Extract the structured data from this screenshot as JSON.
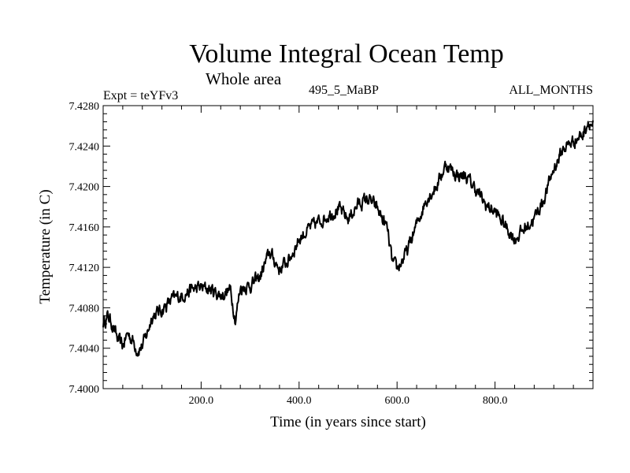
{
  "chart_data": {
    "type": "line",
    "title": "Volume Integral Ocean Temp",
    "subtitle": "Whole area",
    "annotations": {
      "experiment": "Expt = teYFv3",
      "period": "495_5_MaBP",
      "months": "ALL_MONTHS"
    },
    "xlabel": "Time (in years since start)",
    "ylabel": "Temperature (in C)",
    "xlim": [
      0,
      1000
    ],
    "ylim": [
      7.4,
      7.428
    ],
    "x_ticks": [
      200,
      400,
      600,
      800
    ],
    "x_tick_labels": [
      "200.0",
      "400.0",
      "600.0",
      "800.0"
    ],
    "y_ticks": [
      7.4,
      7.404,
      7.408,
      7.412,
      7.416,
      7.42,
      7.424,
      7.428
    ],
    "y_tick_labels": [
      "7.4000",
      "7.4040",
      "7.4080",
      "7.4120",
      "7.4160",
      "7.4200",
      "7.4240",
      "7.4280"
    ],
    "grid": false,
    "series": [
      {
        "name": "Volume Integral Ocean Temp",
        "x": [
          0,
          10,
          20,
          30,
          40,
          50,
          60,
          70,
          80,
          90,
          100,
          120,
          140,
          160,
          180,
          200,
          220,
          240,
          260,
          270,
          280,
          300,
          320,
          340,
          360,
          380,
          400,
          420,
          440,
          460,
          480,
          500,
          520,
          540,
          560,
          580,
          590,
          600,
          620,
          640,
          660,
          680,
          700,
          720,
          740,
          760,
          780,
          800,
          820,
          840,
          860,
          880,
          900,
          920,
          940,
          960,
          980,
          990,
          1000
        ],
        "values": [
          7.4065,
          7.4072,
          7.4062,
          7.4048,
          7.4042,
          7.4055,
          7.4048,
          7.4038,
          7.4042,
          7.4055,
          7.4072,
          7.4078,
          7.4088,
          7.4092,
          7.4098,
          7.41,
          7.4098,
          7.4092,
          7.4098,
          7.4068,
          7.41,
          7.4102,
          7.411,
          7.4135,
          7.4118,
          7.4128,
          7.4148,
          7.4158,
          7.4165,
          7.4172,
          7.4178,
          7.4168,
          7.4182,
          7.4188,
          7.4178,
          7.4158,
          7.4125,
          7.4118,
          7.4135,
          7.4162,
          7.4188,
          7.42,
          7.4222,
          7.4212,
          7.421,
          7.4198,
          7.4182,
          7.4175,
          7.4162,
          7.4148,
          7.4158,
          7.4168,
          7.4188,
          7.4218,
          7.4238,
          7.4245,
          7.4252,
          7.4265,
          7.426
        ]
      }
    ]
  }
}
